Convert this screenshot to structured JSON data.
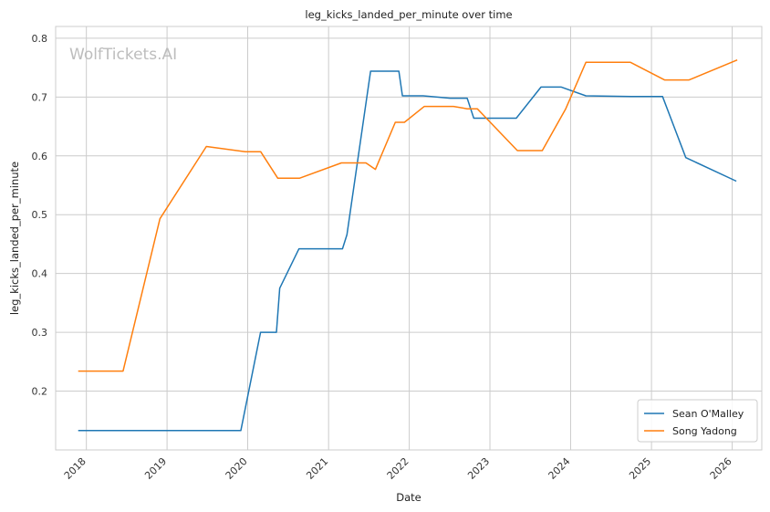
{
  "chart_data": {
    "type": "line",
    "title": "leg_kicks_landed_per_minute over time",
    "xlabel": "Date",
    "ylabel": "leg_kicks_landed_per_minute",
    "watermark": "WolfTickets.AI",
    "x_ticks": [
      "2018",
      "2019",
      "2020",
      "2021",
      "2022",
      "2023",
      "2024",
      "2025",
      "2026"
    ],
    "y_ticks": [
      "0.2",
      "0.3",
      "0.4",
      "0.5",
      "0.6",
      "0.7",
      "0.8"
    ],
    "xlim": [
      "2017-08-15",
      "2026-05-15"
    ],
    "ylim": [
      0.1,
      0.82
    ],
    "grid": true,
    "legend_position": "lower-right",
    "series": [
      {
        "name": "Sean O'Malley",
        "color": "#1f77b4",
        "points": [
          [
            "2017-11-25",
            0.133
          ],
          [
            "2019-12-01",
            0.133
          ],
          [
            "2020-02-28",
            0.3
          ],
          [
            "2020-05-10",
            0.3
          ],
          [
            "2020-05-25",
            0.375
          ],
          [
            "2020-08-20",
            0.442
          ],
          [
            "2021-03-05",
            0.442
          ],
          [
            "2021-03-25",
            0.466
          ],
          [
            "2021-07-10",
            0.744
          ],
          [
            "2021-11-15",
            0.744
          ],
          [
            "2021-12-01",
            0.702
          ],
          [
            "2022-03-05",
            0.702
          ],
          [
            "2022-07-05",
            0.698
          ],
          [
            "2022-09-20",
            0.698
          ],
          [
            "2022-10-20",
            0.664
          ],
          [
            "2023-04-30",
            0.664
          ],
          [
            "2023-08-20",
            0.717
          ],
          [
            "2023-11-20",
            0.717
          ],
          [
            "2024-03-10",
            0.702
          ],
          [
            "2024-09-30",
            0.701
          ],
          [
            "2025-02-20",
            0.701
          ],
          [
            "2025-06-05",
            0.597
          ],
          [
            "2026-01-20",
            0.557
          ]
        ]
      },
      {
        "name": "Song Yadong",
        "color": "#ff7f0e",
        "points": [
          [
            "2017-11-25",
            0.234
          ],
          [
            "2018-06-16",
            0.234
          ],
          [
            "2018-11-30",
            0.493
          ],
          [
            "2019-06-28",
            0.616
          ],
          [
            "2019-12-21",
            0.607
          ],
          [
            "2020-02-29",
            0.607
          ],
          [
            "2020-05-16",
            0.562
          ],
          [
            "2020-08-22",
            0.562
          ],
          [
            "2021-02-28",
            0.588
          ],
          [
            "2021-06-19",
            0.588
          ],
          [
            "2021-08-01",
            0.577
          ],
          [
            "2021-10-30",
            0.657
          ],
          [
            "2021-12-10",
            0.657
          ],
          [
            "2022-03-10",
            0.684
          ],
          [
            "2022-07-20",
            0.684
          ],
          [
            "2022-09-20",
            0.68
          ],
          [
            "2022-11-05",
            0.68
          ],
          [
            "2023-05-05",
            0.609
          ],
          [
            "2023-08-26",
            0.609
          ],
          [
            "2023-12-10",
            0.68
          ],
          [
            "2024-03-10",
            0.759
          ],
          [
            "2024-09-28",
            0.759
          ],
          [
            "2025-03-01",
            0.729
          ],
          [
            "2025-06-20",
            0.729
          ],
          [
            "2026-01-24",
            0.763
          ]
        ]
      }
    ]
  }
}
